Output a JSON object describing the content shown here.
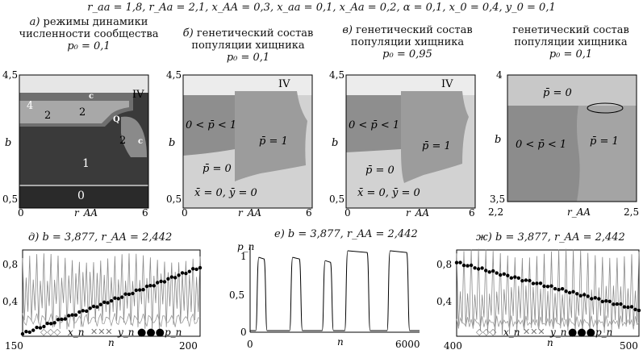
{
  "params_line": "r_aa = 1,8, r_Aa = 2,1, x_AA = 0,3, x_aa = 0,1, x_Aa = 0,2, α = 0,1, x_0 = 0,4, y_0 = 0,1",
  "panels_top": [
    {
      "label": "а)",
      "title_line1": "режимы динамики",
      "title_line2": "численности сообщества",
      "p0": "p₀ = 0,1",
      "ylabel": "b",
      "xlabel": "r_AA",
      "y_top": "4,5",
      "y_bottom": "0,5",
      "x_left": "0",
      "x_right": "6",
      "region_labels": [
        "IV",
        "4",
        "2",
        "2",
        "c",
        "Q",
        "2",
        "c",
        "1",
        "0"
      ]
    },
    {
      "label": "б)",
      "title_line1": "генетический состав",
      "title_line2": "популяции хищника",
      "p0": "p₀ = 0,1",
      "ylabel": "b",
      "xlabel": "r_AA",
      "y_top": "4,5",
      "y_bottom": "0,5",
      "x_left": "0",
      "x_right": "6",
      "region_labels": [
        "IV",
        "0 < p̄ < 1",
        "p̄ = 1",
        "p̄ = 0",
        "x̄ = 0, ȳ = 0"
      ]
    },
    {
      "label": "в)",
      "title_line1": "генетический состав",
      "title_line2": "популяции хищника",
      "p0": "p₀ = 0,95",
      "ylabel": "b",
      "xlabel": "r_AA",
      "y_top": "4,5",
      "y_bottom": "0,5",
      "x_left": "0",
      "x_right": "6",
      "region_labels": [
        "IV",
        "0 < p̄ < 1",
        "p̄ = 1",
        "p̄ = 0",
        "x̄ = 0, ȳ = 0"
      ]
    },
    {
      "label": "",
      "title_line1": "генетический состав",
      "title_line2": "популяции хищника",
      "p0": "p₀ = 0,1",
      "ylabel": "b",
      "xlabel": "r_AA",
      "y_top": "4",
      "y_bottom": "3,5",
      "x_left": "2,2",
      "x_right": "2,5",
      "region_labels": [
        "p̄ = 0",
        "0 < p̄ < 1",
        "p̄ = 1"
      ]
    }
  ],
  "panels_bottom": [
    {
      "label": "д)",
      "title": "b = 3,877, r_AA = 2,442",
      "xlabel": "n",
      "x_ticks": [
        "150",
        "200"
      ],
      "y_ticks": [
        "0,8",
        "0,4"
      ],
      "legend": [
        "x_n",
        "y_n",
        "p_n"
      ]
    },
    {
      "label": "е)",
      "title": "b = 3,877, r_AA = 2,442",
      "xlabel": "n",
      "ylabel": "p_n",
      "x_ticks": [
        "0",
        "6000"
      ],
      "y_ticks": [
        "1",
        "0,5",
        "0"
      ]
    },
    {
      "label": "ж)",
      "title": "b = 3,877, r_AA = 2,442",
      "xlabel": "n",
      "x_ticks": [
        "400",
        "500"
      ],
      "y_ticks": [
        "0,8",
        "0,4"
      ],
      "legend": [
        "x_n",
        "y_n",
        "p_n"
      ]
    }
  ],
  "chart_data": [
    {
      "type": "heatmap",
      "panel": "а",
      "xlabel": "r_AA",
      "ylabel": "b",
      "xlim": [
        0,
        6
      ],
      "ylim": [
        0.5,
        4.5
      ]
    },
    {
      "type": "heatmap",
      "panel": "б",
      "xlabel": "r_AA",
      "ylabel": "b",
      "xlim": [
        0,
        6
      ],
      "ylim": [
        0.5,
        4.5
      ]
    },
    {
      "type": "heatmap",
      "panel": "в",
      "xlabel": "r_AA",
      "ylabel": "b",
      "xlim": [
        0,
        6
      ],
      "ylim": [
        0.5,
        4.5
      ]
    },
    {
      "type": "heatmap",
      "panel": "zoom",
      "xlabel": "r_AA",
      "ylabel": "b",
      "xlim": [
        2.2,
        2.5
      ],
      "ylim": [
        3.5,
        4
      ]
    },
    {
      "type": "line",
      "panel": "д",
      "xlabel": "n",
      "xlim": [
        150,
        200
      ],
      "ylim": [
        0.2,
        0.95
      ],
      "series": [
        {
          "name": "x_n",
          "note_period": 4,
          "values_pattern": [
            0.88,
            0.3,
            0.72,
            0.45
          ]
        },
        {
          "name": "y_n",
          "values_pattern": [
            0.38,
            0.33,
            0.3,
            0.36
          ]
        },
        {
          "name": "p_n",
          "start": 0.22,
          "end": 0.8
        }
      ]
    },
    {
      "type": "line",
      "panel": "е",
      "xlabel": "n",
      "ylabel": "p_n",
      "xlim": [
        0,
        6000
      ],
      "ylim": [
        0,
        1.05
      ],
      "series": [
        {
          "name": "p_n",
          "pulses": [
            [
              200,
              600,
              0.92
            ],
            [
              1400,
              1850,
              0.92
            ],
            [
              2550,
              2950,
              0.88
            ],
            [
              3350,
              4250,
              1.0
            ],
            [
              4850,
              5650,
              1.0
            ]
          ]
        }
      ]
    },
    {
      "type": "line",
      "panel": "ж",
      "xlabel": "n",
      "xlim": [
        400,
        500
      ],
      "ylim": [
        0.2,
        0.95
      ],
      "series": [
        {
          "name": "x_n",
          "values_pattern": [
            0.92,
            0.25,
            0.6,
            0.35
          ]
        },
        {
          "name": "y_n",
          "values_pattern": [
            0.33,
            0.28,
            0.36,
            0.3
          ]
        },
        {
          "name": "p_n",
          "start": 0.84,
          "end": 0.43
        }
      ]
    }
  ]
}
